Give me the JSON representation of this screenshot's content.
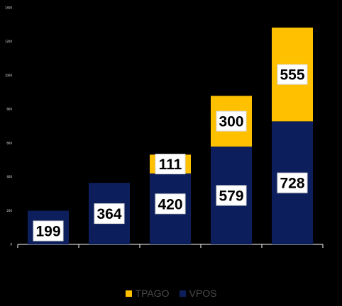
{
  "chart_data": {
    "type": "bar",
    "stacked": true,
    "categories": [
      "",
      "",
      "",
      "",
      ""
    ],
    "series": [
      {
        "name": "VPOS",
        "color": "#0c1f5c",
        "values": [
          199,
          364,
          420,
          579,
          728
        ]
      },
      {
        "name": "TPAGO",
        "color": "#ffc000",
        "values": [
          0,
          0,
          111,
          300,
          555
        ]
      }
    ],
    "y_ticks": [
      "0",
      "200",
      "400",
      "600",
      "800",
      "1000",
      "1200",
      "1400"
    ],
    "ylim": [
      0,
      1400
    ],
    "grid": false,
    "legend_position": "bottom",
    "legend": [
      "TPAGO",
      "VPOS"
    ]
  }
}
